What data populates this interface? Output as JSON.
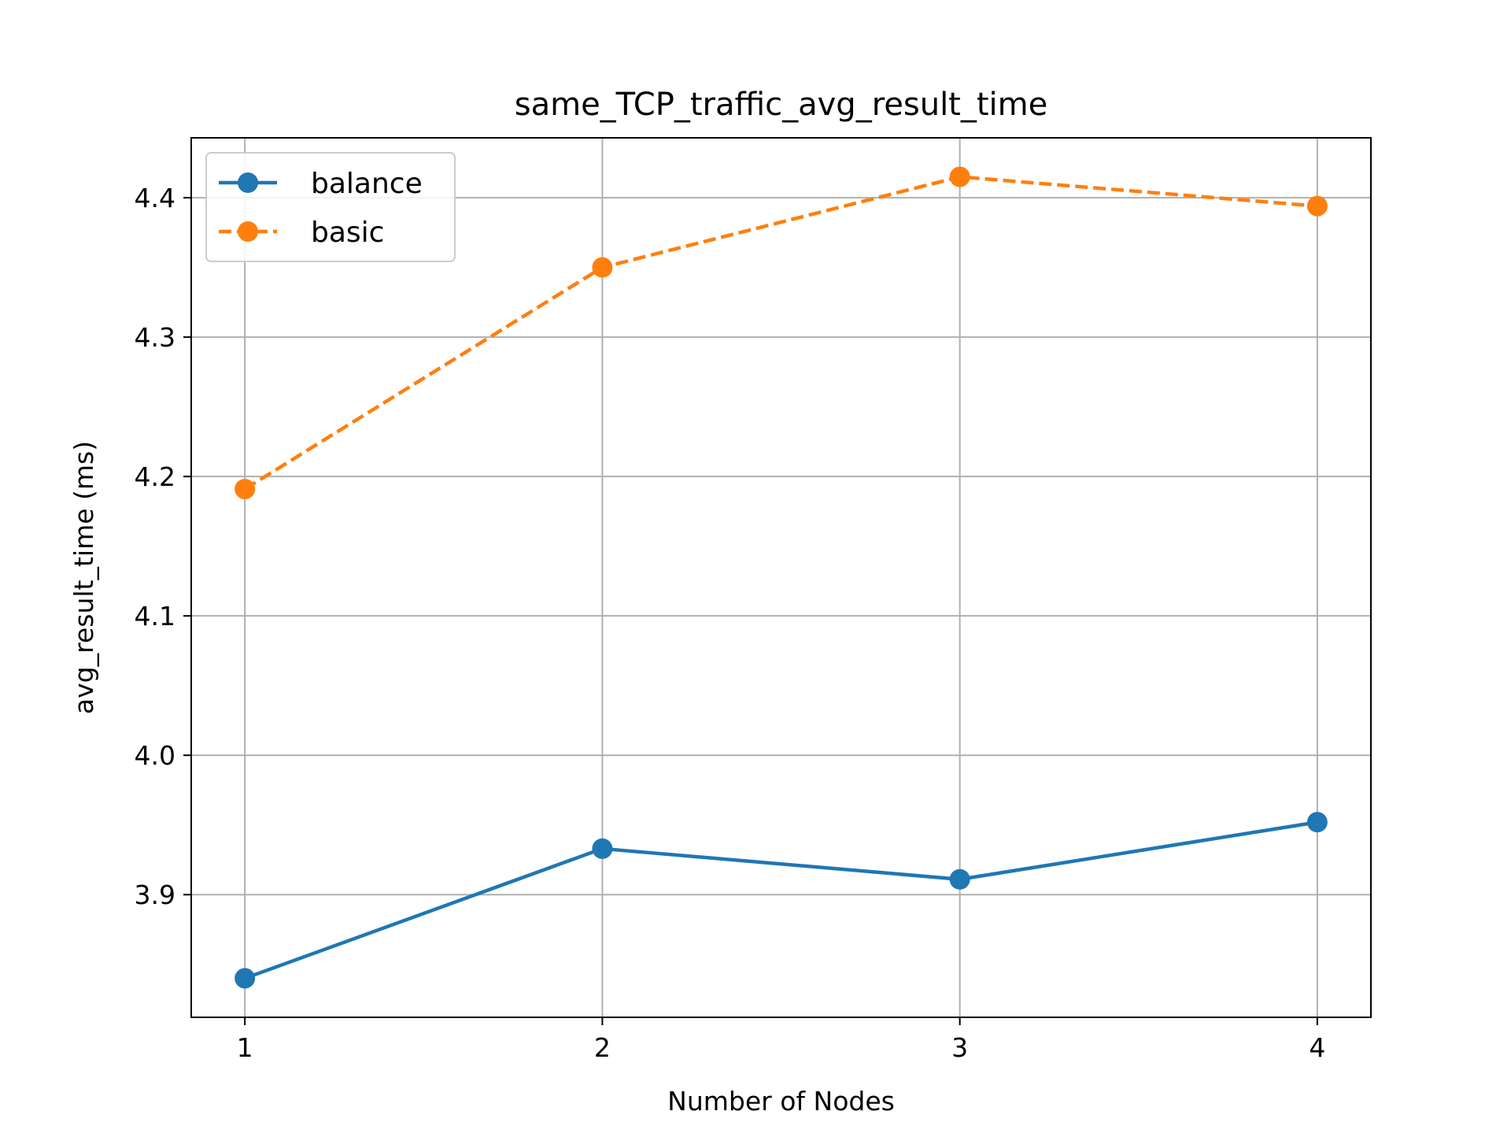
{
  "chart_data": {
    "type": "line",
    "title": "same_TCP_traffic_avg_result_time",
    "xlabel": "Number of Nodes",
    "ylabel": "avg_result_time (ms)",
    "x": [
      1,
      2,
      3,
      4
    ],
    "xticks": [
      "1",
      "2",
      "3",
      "4"
    ],
    "yticks": [
      "3.9",
      "4.0",
      "4.1",
      "4.2",
      "4.3",
      "4.4"
    ],
    "xlim": [
      0.85,
      4.15
    ],
    "ylim": [
      3.812,
      4.443
    ],
    "grid": true,
    "legend_position": "top-left",
    "series": [
      {
        "name": "balance",
        "color": "#1f77b4",
        "linestyle": "solid",
        "marker": "circle",
        "values": [
          3.84,
          3.933,
          3.911,
          3.952
        ]
      },
      {
        "name": "basic",
        "color": "#ff7f0e",
        "linestyle": "dashed",
        "marker": "circle",
        "values": [
          4.191,
          4.35,
          4.415,
          4.394
        ]
      }
    ]
  }
}
